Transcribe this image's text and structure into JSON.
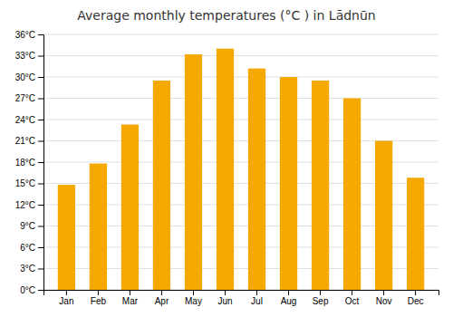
{
  "chart_data": {
    "type": "bar",
    "title": "Average monthly temperatures (°C ) in Lādnūn",
    "categories": [
      "Jan",
      "Feb",
      "Mar",
      "Apr",
      "May",
      "Jun",
      "Jul",
      "Aug",
      "Sep",
      "Oct",
      "Nov",
      "Dec"
    ],
    "values": [
      14.8,
      17.8,
      23.3,
      29.5,
      33.2,
      34.0,
      31.2,
      30.0,
      29.5,
      27.0,
      21.0,
      15.8
    ],
    "color": "#F5A800",
    "ylim": [
      0,
      36
    ],
    "yticks": [
      {
        "value": 0,
        "label": "0°C"
      },
      {
        "value": 3,
        "label": "3°C"
      },
      {
        "value": 6,
        "label": "6°C"
      },
      {
        "value": 9,
        "label": "9°C"
      },
      {
        "value": 12,
        "label": "12°C"
      },
      {
        "value": 15,
        "label": "15°C"
      },
      {
        "value": 18,
        "label": "18°C"
      },
      {
        "value": 21,
        "label": "21°C"
      },
      {
        "value": 24,
        "label": "24°C"
      },
      {
        "value": 27,
        "label": "27°C"
      },
      {
        "value": 30,
        "label": "30°C"
      },
      {
        "value": 33,
        "label": "33°C"
      },
      {
        "value": 36,
        "label": "36°C"
      }
    ],
    "grid": true
  }
}
